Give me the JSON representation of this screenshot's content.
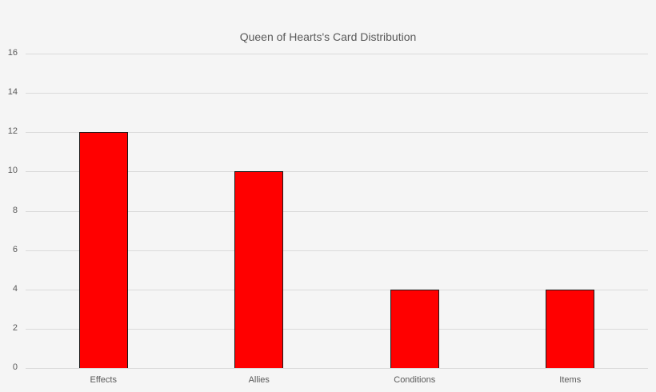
{
  "chart_data": {
    "type": "bar",
    "title": "Queen of Hearts's Card Distribution",
    "categories": [
      "Effects",
      "Allies",
      "Conditions",
      "Items"
    ],
    "values": [
      12,
      10,
      4,
      4
    ],
    "xlabel": "",
    "ylabel": "",
    "ylim": [
      0,
      16
    ],
    "yticks": [
      0,
      2,
      4,
      6,
      8,
      10,
      12,
      14,
      16
    ],
    "grid": true,
    "legend": "none",
    "bar_color": "#ff0000"
  }
}
